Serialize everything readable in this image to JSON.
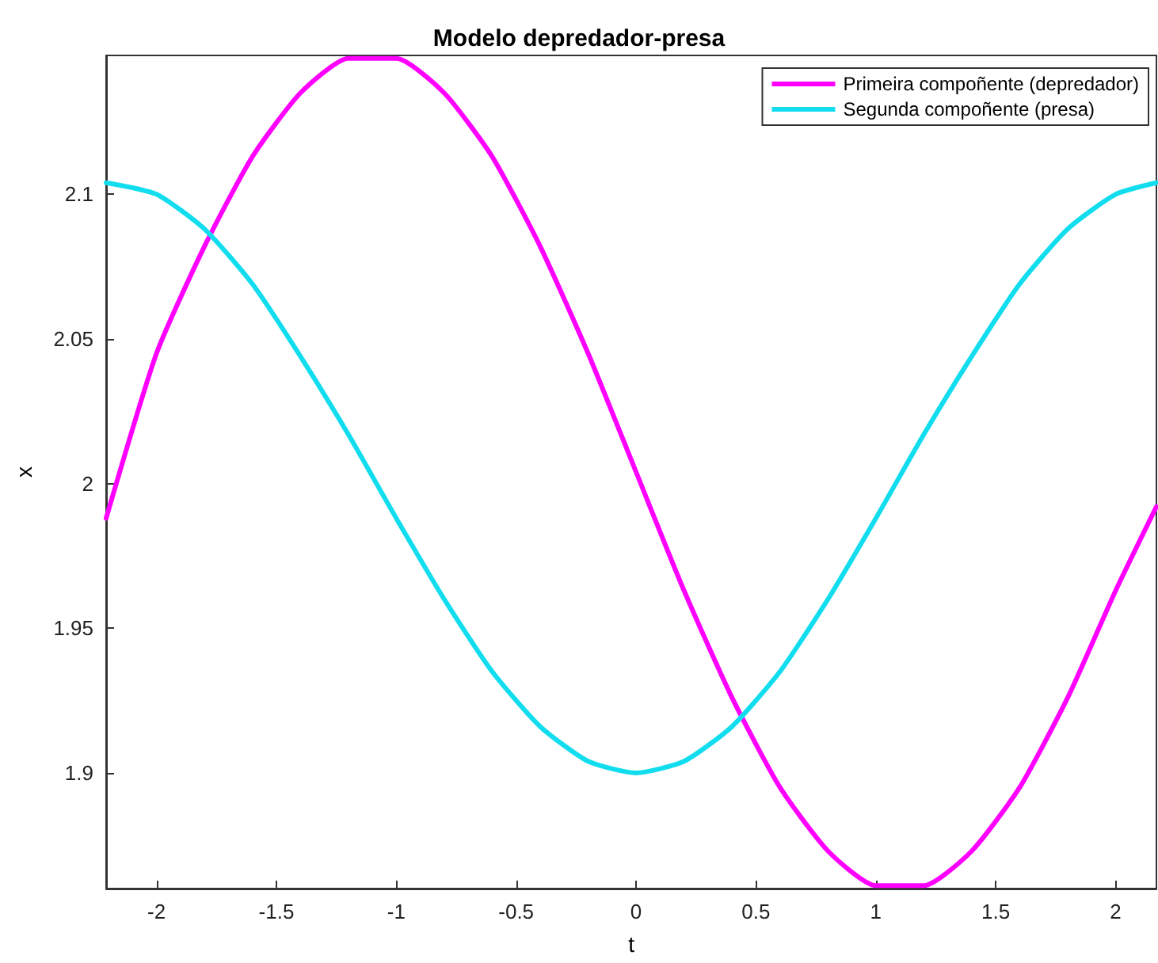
{
  "chart_data": {
    "type": "line",
    "title": "Modelo depredador-presa",
    "xlabel": "t",
    "ylabel": "x",
    "x": [
      -2.21,
      -2.0,
      -1.8,
      -1.6,
      -1.4,
      -1.2,
      -1.0,
      -0.8,
      -0.6,
      -0.4,
      -0.2,
      0,
      0.2,
      0.4,
      0.6,
      0.8,
      1.0,
      1.2,
      1.4,
      1.6,
      1.8,
      2.0,
      2.17
    ],
    "series": [
      {
        "name": "Primeira compoñente (depredador)",
        "color": "#ff00ff",
        "values": [
          1.988,
          2.045,
          2.082,
          2.113,
          2.135,
          2.147,
          2.147,
          2.135,
          2.113,
          2.082,
          2.045,
          2.004,
          1.963,
          1.926,
          1.895,
          1.873,
          1.861,
          1.861,
          1.873,
          1.895,
          1.926,
          1.963,
          1.992
        ]
      },
      {
        "name": "Segunda compoñente (presa)",
        "color": "#11ddee",
        "values": [
          2.104,
          2.1,
          2.088,
          2.069,
          2.044,
          2.017,
          1.988,
          1.96,
          1.935,
          1.916,
          1.904,
          1.9,
          1.904,
          1.916,
          1.935,
          1.96,
          1.988,
          2.017,
          2.044,
          2.069,
          2.088,
          2.1,
          2.104
        ]
      }
    ],
    "xlim": [
      -2.21,
      2.17
    ],
    "xticks": [
      -2,
      -1.5,
      -1,
      -0.5,
      0,
      0.5,
      1,
      1.5,
      2
    ],
    "ylim": [
      1.86,
      2.148
    ],
    "yticks": [
      1.9,
      1.95,
      2,
      2.05,
      2.1
    ],
    "grid": false,
    "legend": "top right",
    "marker": "none",
    "line_style": "solid"
  }
}
